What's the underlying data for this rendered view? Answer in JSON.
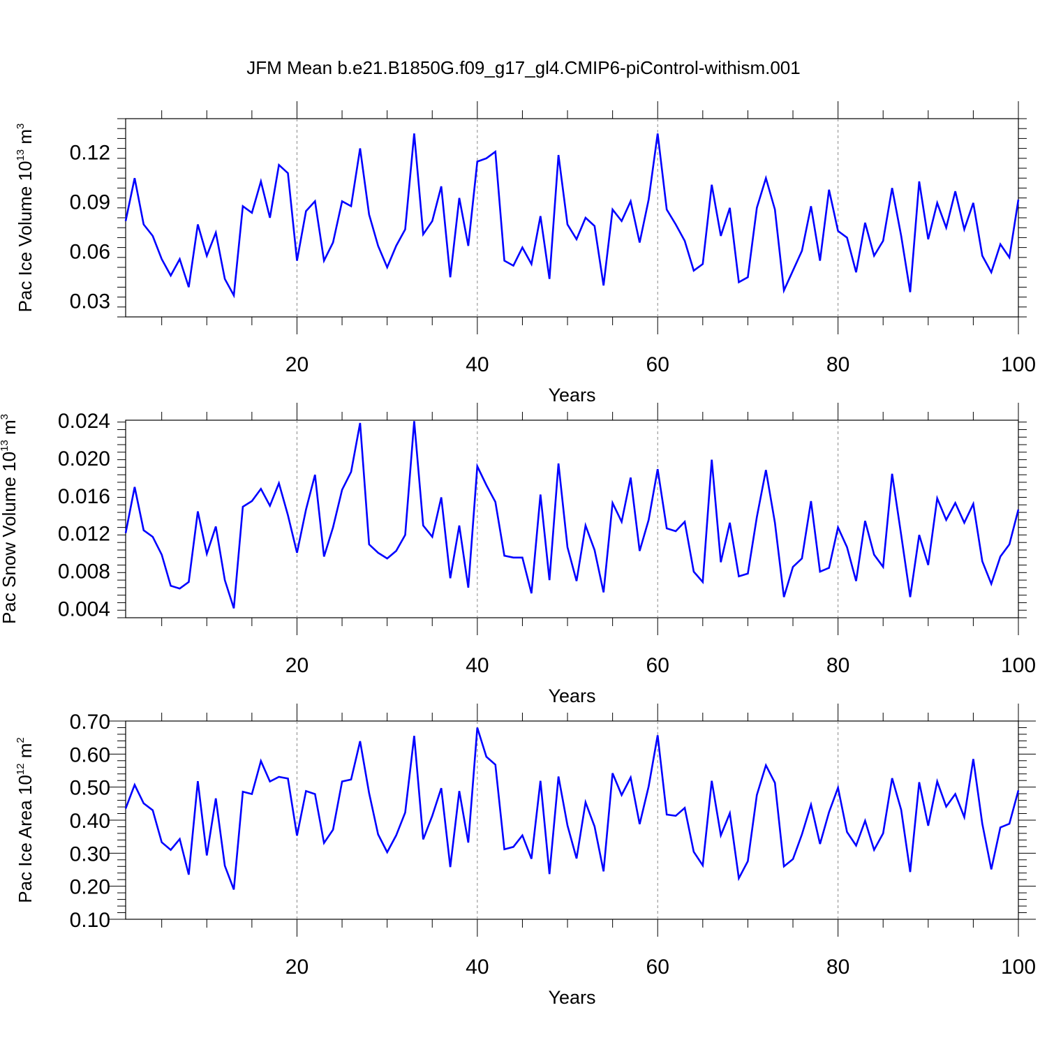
{
  "chart_data": {
    "type": "line",
    "title": "JFM Mean b.e21.B1850G.f09_g17_gl4.CMIP6-piControl-withism.001",
    "line_color": "#0000ff",
    "panels": [
      {
        "id": "ice-volume",
        "ylabel": {
          "main": "Pac Ice Volume 10",
          "sup": "13",
          "unit": " m",
          "unit_sup": "3"
        },
        "xlabel": "Years",
        "xlim": [
          1,
          100
        ],
        "ylim": [
          0.02,
          0.14
        ],
        "x_ticks": [
          20,
          40,
          60,
          80,
          100
        ],
        "y_ticks": [
          0.03,
          0.06,
          0.09,
          0.12
        ],
        "y_tick_labels": [
          "0.03",
          "0.06",
          "0.09",
          "0.12"
        ],
        "values": [
          0.078,
          0.104,
          0.076,
          0.069,
          0.055,
          0.045,
          0.055,
          0.038,
          0.076,
          0.057,
          0.071,
          0.043,
          0.033,
          0.087,
          0.083,
          0.102,
          0.08,
          0.112,
          0.107,
          0.054,
          0.084,
          0.09,
          0.054,
          0.065,
          0.09,
          0.087,
          0.122,
          0.082,
          0.063,
          0.05,
          0.063,
          0.073,
          0.131,
          0.07,
          0.078,
          0.099,
          0.044,
          0.092,
          0.063,
          0.114,
          0.116,
          0.12,
          0.054,
          0.051,
          0.062,
          0.052,
          0.081,
          0.043,
          0.118,
          0.076,
          0.067,
          0.08,
          0.075,
          0.039,
          0.085,
          0.078,
          0.09,
          0.065,
          0.091,
          0.131,
          0.085,
          0.076,
          0.066,
          0.048,
          0.052,
          0.1,
          0.069,
          0.086,
          0.041,
          0.044,
          0.086,
          0.104,
          0.085,
          0.036,
          0.048,
          0.06,
          0.087,
          0.054,
          0.097,
          0.072,
          0.068,
          0.047,
          0.077,
          0.057,
          0.066,
          0.098,
          0.069,
          0.035,
          0.102,
          0.067,
          0.089,
          0.074,
          0.096,
          0.073,
          0.089,
          0.057,
          0.047,
          0.064,
          0.056,
          0.091
        ]
      },
      {
        "id": "snow-volume",
        "ylabel": {
          "main": "Pac Snow Volume 10",
          "sup": "13",
          "unit": " m",
          "unit_sup": "3"
        },
        "xlabel": "Years",
        "xlim": [
          1,
          100
        ],
        "ylim": [
          0.003,
          0.024
        ],
        "x_ticks": [
          20,
          40,
          60,
          80,
          100
        ],
        "y_ticks": [
          0.004,
          0.008,
          0.012,
          0.016,
          0.02,
          0.024
        ],
        "y_tick_labels": [
          "0.004",
          "0.008",
          "0.012",
          "0.016",
          "0.020",
          "0.024"
        ],
        "values": [
          0.012,
          0.0169,
          0.0123,
          0.0116,
          0.0097,
          0.0064,
          0.0061,
          0.0068,
          0.0143,
          0.0098,
          0.0127,
          0.007,
          0.004,
          0.0148,
          0.0154,
          0.0167,
          0.0149,
          0.0173,
          0.0139,
          0.0099,
          0.0145,
          0.0182,
          0.0095,
          0.0126,
          0.0166,
          0.0185,
          0.0237,
          0.0108,
          0.0099,
          0.0093,
          0.0101,
          0.0118,
          0.0239,
          0.0128,
          0.0116,
          0.0158,
          0.0072,
          0.0128,
          0.0062,
          0.0191,
          0.0171,
          0.0153,
          0.0096,
          0.0094,
          0.0094,
          0.0056,
          0.0161,
          0.007,
          0.0194,
          0.0105,
          0.0069,
          0.0128,
          0.0102,
          0.0057,
          0.0152,
          0.0132,
          0.0179,
          0.0101,
          0.0134,
          0.0188,
          0.0125,
          0.0122,
          0.0132,
          0.0079,
          0.0068,
          0.0198,
          0.0089,
          0.0131,
          0.0074,
          0.0077,
          0.0137,
          0.0187,
          0.0131,
          0.0052,
          0.0084,
          0.0093,
          0.0154,
          0.0079,
          0.0083,
          0.0126,
          0.0105,
          0.0069,
          0.0133,
          0.0097,
          0.0084,
          0.0183,
          0.0118,
          0.0052,
          0.0118,
          0.0086,
          0.0157,
          0.0134,
          0.0152,
          0.0131,
          0.0151,
          0.009,
          0.0066,
          0.0095,
          0.0108,
          0.0145
        ]
      },
      {
        "id": "ice-area",
        "ylabel": {
          "main": "Pac Ice Area 10",
          "sup": "12",
          "unit": " m",
          "unit_sup": "2"
        },
        "xlabel": "Years",
        "xlim": [
          1,
          100
        ],
        "ylim": [
          0.1,
          0.7
        ],
        "x_ticks": [
          20,
          40,
          60,
          80,
          100
        ],
        "y_ticks": [
          0.1,
          0.2,
          0.3,
          0.4,
          0.5,
          0.6,
          0.7
        ],
        "y_tick_labels": [
          "0.10",
          "0.20",
          "0.30",
          "0.40",
          "0.50",
          "0.60",
          "0.70"
        ],
        "values": [
          0.435,
          0.507,
          0.451,
          0.43,
          0.333,
          0.31,
          0.343,
          0.235,
          0.518,
          0.293,
          0.466,
          0.262,
          0.19,
          0.486,
          0.479,
          0.579,
          0.517,
          0.531,
          0.526,
          0.353,
          0.488,
          0.479,
          0.331,
          0.371,
          0.517,
          0.523,
          0.639,
          0.482,
          0.357,
          0.303,
          0.354,
          0.423,
          0.655,
          0.342,
          0.413,
          0.497,
          0.258,
          0.488,
          0.332,
          0.68,
          0.592,
          0.568,
          0.312,
          0.319,
          0.354,
          0.283,
          0.519,
          0.237,
          0.532,
          0.384,
          0.284,
          0.454,
          0.381,
          0.245,
          0.542,
          0.476,
          0.529,
          0.388,
          0.502,
          0.657,
          0.417,
          0.413,
          0.437,
          0.304,
          0.263,
          0.519,
          0.354,
          0.421,
          0.224,
          0.276,
          0.476,
          0.566,
          0.513,
          0.26,
          0.282,
          0.357,
          0.447,
          0.328,
          0.424,
          0.498,
          0.364,
          0.323,
          0.398,
          0.31,
          0.36,
          0.527,
          0.431,
          0.243,
          0.515,
          0.383,
          0.517,
          0.441,
          0.479,
          0.409,
          0.585,
          0.389,
          0.251,
          0.378,
          0.389,
          0.49
        ]
      }
    ]
  }
}
